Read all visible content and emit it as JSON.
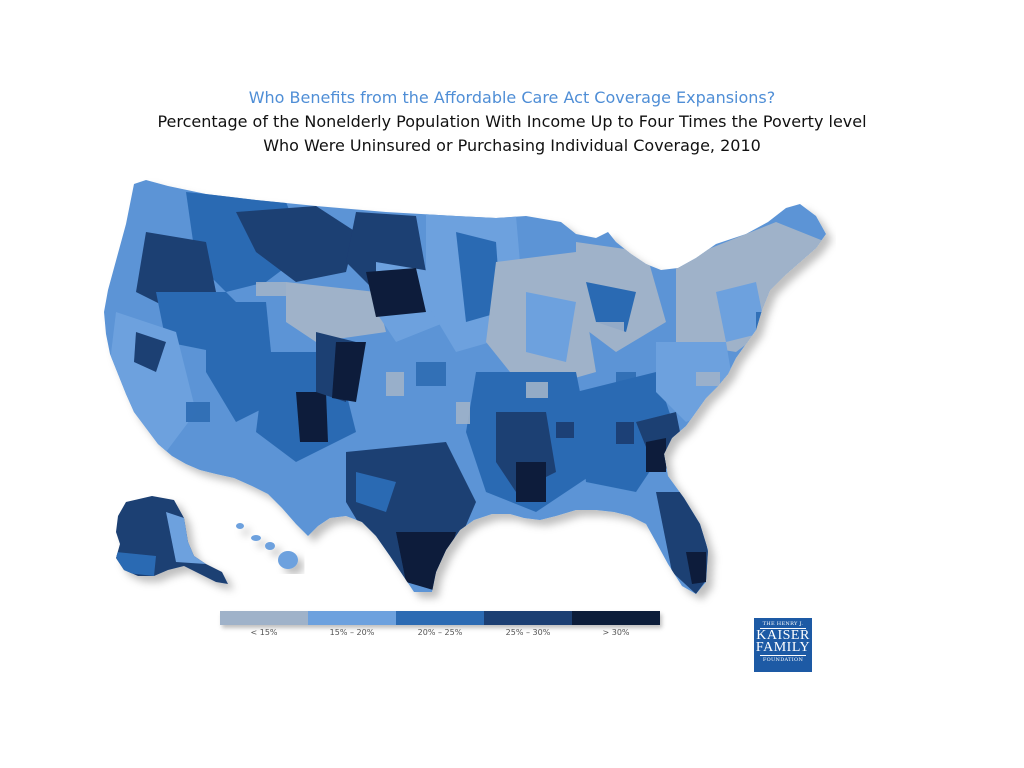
{
  "title": "Who Benefits from the Affordable Care Act Coverage Expansions?",
  "subtitle_line1": "Percentage of the Nonelderly Population With Income Up to Four Times the Poverty level",
  "subtitle_line2": "Who Were Uninsured or Purchasing Individual Coverage, 2010",
  "legend": [
    {
      "label": "< 15%",
      "color": "#9fb2c9"
    },
    {
      "label": "15% – 20%",
      "color": "#6da1de"
    },
    {
      "label": "20% – 25%",
      "color": "#2c6bb3"
    },
    {
      "label": "25% – 30%",
      "color": "#1c3f73"
    },
    {
      "label": "> 30%",
      "color": "#0c1d3a"
    }
  ],
  "logo": {
    "line1": "THE HENRY J.",
    "line2": "KAISER",
    "line3": "FAMILY",
    "line4": "FOUNDATION"
  },
  "colors": {
    "title": "#4f8ed6",
    "map_base": "#5b94d6"
  }
}
